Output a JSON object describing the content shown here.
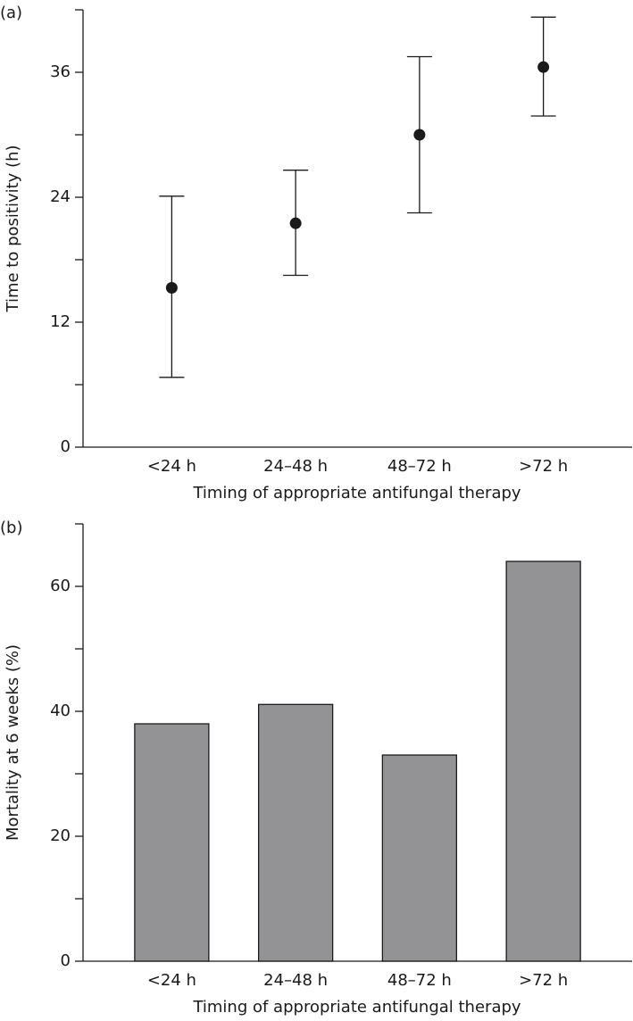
{
  "chart_data": [
    {
      "type": "errorbar",
      "panel_label": "(a)",
      "x_label": "Timing of appropriate antifungal therapy",
      "y_label": "Time to positivity (h)",
      "categories": [
        "<24 h",
        "24–48 h",
        "48–72 h",
        ">72 h"
      ],
      "values": [
        15.3,
        21.5,
        30.0,
        36.5
      ],
      "lower": [
        6.7,
        16.5,
        22.5,
        31.8
      ],
      "upper": [
        24.1,
        26.6,
        37.5,
        41.3
      ],
      "color": "#1a1a1a",
      "ylim": [
        0,
        42
      ],
      "yticks": [
        0,
        12,
        24,
        36
      ],
      "yminorticks": [
        6,
        18,
        30,
        42
      ]
    },
    {
      "type": "bar",
      "panel_label": "(b)",
      "x_label": "Timing of appropriate antifungal therapy",
      "y_label": "Mortality at 6 weeks (%)",
      "categories": [
        "<24 h",
        "24–48 h",
        "48–72 h",
        ">72 h"
      ],
      "values": [
        38.0,
        41.1,
        33.0,
        64.0
      ],
      "color": "#939396",
      "ylim": [
        0,
        70
      ],
      "yticks": [
        0,
        20,
        40,
        60
      ],
      "yminorticks": [
        10,
        30,
        50,
        70
      ]
    }
  ]
}
